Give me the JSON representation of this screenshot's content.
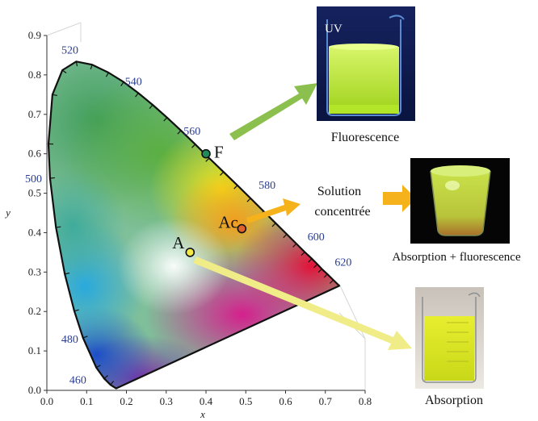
{
  "chart_data": {
    "type": "scatter",
    "xlabel": "x",
    "ylabel": "y",
    "xlim": [
      0.0,
      0.8
    ],
    "ylim": [
      0.0,
      0.9
    ],
    "x_ticks": [
      "0.0",
      "0.1",
      "0.2",
      "0.3",
      "0.4",
      "0.5",
      "0.6",
      "0.7",
      "0.8"
    ],
    "y_ticks": [
      "0.0",
      "0.1",
      "0.2",
      "0.3",
      "0.4",
      "0.5",
      "0.6",
      "0.7",
      "0.8",
      "0.9"
    ],
    "wavelength_labels": [
      {
        "label": "460",
        "x": 0.144,
        "y": 0.03
      },
      {
        "label": "480",
        "x": 0.091,
        "y": 0.133
      },
      {
        "label": "500",
        "x": 0.008,
        "y": 0.538
      },
      {
        "label": "520",
        "x": 0.074,
        "y": 0.834
      },
      {
        "label": "540",
        "x": 0.23,
        "y": 0.754
      },
      {
        "label": "560",
        "x": 0.373,
        "y": 0.624
      },
      {
        "label": "580",
        "x": 0.512,
        "y": 0.487
      },
      {
        "label": "600",
        "x": 0.627,
        "y": 0.372
      },
      {
        "label": "620",
        "x": 0.691,
        "y": 0.308
      }
    ],
    "points": [
      {
        "label": "F",
        "x": 0.4,
        "y": 0.6,
        "color": "#1f8a5a"
      },
      {
        "label": "Ac",
        "x": 0.49,
        "y": 0.41,
        "color": "#e0642a"
      },
      {
        "label": "A",
        "x": 0.36,
        "y": 0.35,
        "color": "#f2e84a"
      }
    ]
  },
  "photos": {
    "uv": {
      "label": "UV",
      "caption": "Fluorescence"
    },
    "middle": {
      "caption": "Absorption + fluorescence"
    },
    "bottom": {
      "caption": "Absorption"
    }
  },
  "solution_label": {
    "line1": "Solution",
    "line2": "concentrée"
  },
  "colors": {
    "arrow_F": "#8cc04e",
    "arrow_Ac": "#f5b21a",
    "arrow_A": "#f0ec88"
  }
}
